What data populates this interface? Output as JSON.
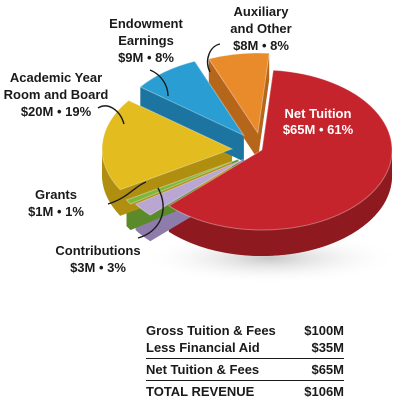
{
  "chart_data": {
    "type": "pie",
    "slices": [
      {
        "label": "Net Tuition",
        "value_text": "$65M • 61%",
        "value": 65,
        "percent": 61,
        "color": "#c5242c",
        "dark": "#8e1a20"
      },
      {
        "label": "Contributions",
        "value_text": "$3M • 3%",
        "value": 3,
        "percent": 3,
        "color": "#b9a6d3",
        "dark": "#8e7cab"
      },
      {
        "label": "Grants",
        "value_text": "$1M • 1%",
        "value": 1,
        "percent": 1,
        "color": "#7cb83e",
        "dark": "#5a8a2a"
      },
      {
        "label": "Academic Year Room and Board",
        "value_text": "$20M • 19%",
        "value": 20,
        "percent": 19,
        "color": "#e3bd1f",
        "dark": "#b08f10"
      },
      {
        "label": "Endowment Earnings",
        "value_text": "$9M • 8%",
        "value": 9,
        "percent": 8,
        "color": "#2a9ed3",
        "dark": "#1c74a0"
      },
      {
        "label": "Auxiliary and Other",
        "value_text": "$8M • 8%",
        "value": 8,
        "percent": 8,
        "color": "#e98a2b",
        "dark": "#b6661a"
      }
    ]
  },
  "labels": {
    "net_tuition_1": "Net Tuition",
    "net_tuition_2": "$65M • 61%",
    "contributions_1": "Contributions",
    "contributions_2": "$3M • 3%",
    "grants_1": "Grants",
    "grants_2": "$1M • 1%",
    "room_1": "Academic Year",
    "room_2": "Room and Board",
    "room_3": "$20M • 19%",
    "endow_1": "Endowment",
    "endow_2": "Earnings",
    "endow_3": "$9M • 8%",
    "aux_1": "Auxiliary",
    "aux_2": "and Other",
    "aux_3": "$8M • 8%"
  },
  "summary": {
    "rows": [
      {
        "label": "Gross Tuition & Fees",
        "value": "$100M"
      },
      {
        "label": "Less Financial Aid",
        "value": "$35M"
      },
      {
        "label": "Net Tuition & Fees",
        "value": "$65M"
      },
      {
        "label": "TOTAL REVENUE",
        "value": "$106M"
      }
    ]
  }
}
